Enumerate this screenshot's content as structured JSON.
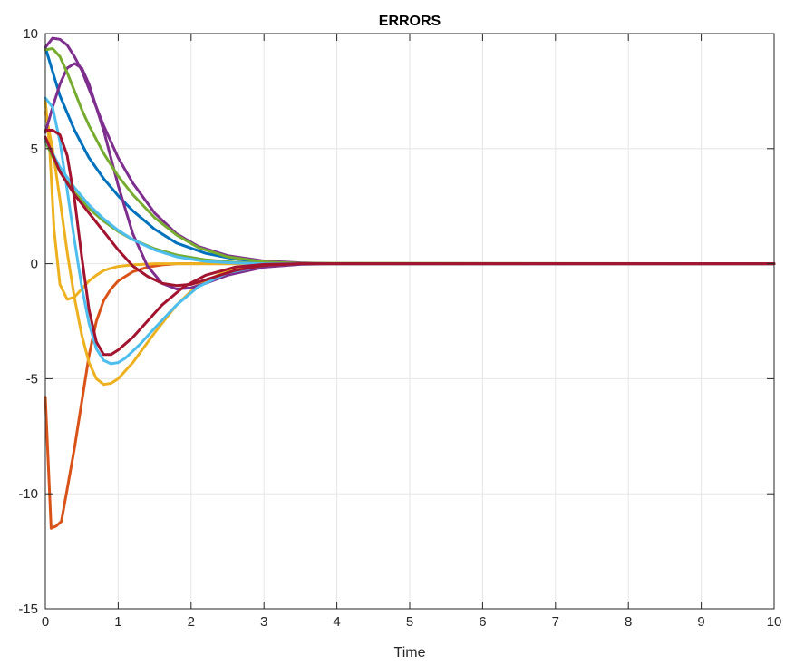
{
  "chart_data": {
    "type": "line",
    "title": "ERRORS",
    "xlabel": "Time",
    "ylabel": "",
    "xlim": [
      0,
      10
    ],
    "ylim": [
      -15,
      10
    ],
    "xticks": [
      0,
      1,
      2,
      3,
      4,
      5,
      6,
      7,
      8,
      9,
      10
    ],
    "yticks": [
      -15,
      -10,
      -5,
      0,
      5,
      10
    ],
    "grid": true,
    "series": [
      {
        "color": "#0072BD",
        "x": [
          0,
          0.2,
          0.4,
          0.6,
          0.8,
          1.0,
          1.2,
          1.5,
          1.8,
          2.2,
          2.6,
          3.0,
          3.5,
          4.0,
          10.0
        ],
        "y": [
          9.4,
          7.3,
          5.8,
          4.6,
          3.7,
          2.95,
          2.3,
          1.5,
          0.9,
          0.45,
          0.2,
          0.08,
          0.02,
          0.0,
          0.0
        ]
      },
      {
        "color": "#D95319",
        "x": [
          0,
          0.08,
          0.15,
          0.22,
          0.3,
          0.4,
          0.5,
          0.6,
          0.7,
          0.8,
          0.9,
          1.0,
          1.2,
          1.4,
          1.6,
          1.8,
          2.0,
          2.5,
          3.0,
          4.0,
          10.0
        ],
        "y": [
          -5.8,
          -11.5,
          -11.4,
          -11.2,
          -9.8,
          -8.0,
          -6.0,
          -4.0,
          -2.5,
          -1.6,
          -1.1,
          -0.75,
          -0.35,
          -0.15,
          -0.05,
          0.0,
          0.0,
          0.0,
          0.0,
          0.0,
          0.0
        ]
      },
      {
        "color": "#EDB120",
        "x": [
          0,
          0.06,
          0.12,
          0.2,
          0.3,
          0.4,
          0.5,
          0.6,
          0.7,
          0.8,
          0.9,
          1.0,
          1.2,
          1.5,
          2.0,
          3.0,
          10.0
        ],
        "y": [
          7.1,
          5.0,
          1.5,
          -0.9,
          -1.55,
          -1.45,
          -1.1,
          -0.75,
          -0.5,
          -0.3,
          -0.2,
          -0.12,
          -0.05,
          0.0,
          0.0,
          0.0,
          0.0
        ]
      },
      {
        "color": "#EDB120",
        "x": [
          0,
          0.1,
          0.2,
          0.3,
          0.4,
          0.5,
          0.6,
          0.7,
          0.8,
          0.9,
          1.0,
          1.2,
          1.5,
          1.8,
          2.1,
          2.5,
          3.0,
          3.5,
          4.0,
          10.0
        ],
        "y": [
          6.6,
          5.0,
          2.8,
          0.5,
          -1.5,
          -3.1,
          -4.3,
          -5.0,
          -5.25,
          -5.2,
          -5.0,
          -4.3,
          -3.0,
          -1.8,
          -0.9,
          -0.3,
          -0.05,
          0.0,
          0.0,
          0.0
        ]
      },
      {
        "color": "#7E2F8E",
        "x": [
          0,
          0.1,
          0.2,
          0.3,
          0.4,
          0.5,
          0.6,
          0.8,
          1.0,
          1.2,
          1.5,
          1.8,
          2.1,
          2.5,
          3.0,
          3.5,
          4.0,
          10.0
        ],
        "y": [
          9.4,
          9.8,
          9.75,
          9.5,
          9.0,
          8.4,
          7.6,
          6.0,
          4.6,
          3.5,
          2.2,
          1.3,
          0.75,
          0.35,
          0.12,
          0.04,
          0.0,
          0.0
        ]
      },
      {
        "color": "#7E2F8E",
        "x": [
          0,
          0.1,
          0.2,
          0.3,
          0.4,
          0.5,
          0.6,
          0.8,
          1.0,
          1.2,
          1.4,
          1.6,
          1.8,
          2.0,
          2.2,
          2.5,
          3.0,
          3.5,
          4.0,
          10.0
        ],
        "y": [
          5.7,
          6.8,
          7.8,
          8.5,
          8.7,
          8.5,
          7.8,
          5.8,
          3.4,
          1.3,
          -0.1,
          -0.85,
          -1.1,
          -1.05,
          -0.85,
          -0.5,
          -0.15,
          -0.03,
          0.0,
          0.0
        ]
      },
      {
        "color": "#77AC30",
        "x": [
          0,
          0.1,
          0.2,
          0.3,
          0.4,
          0.5,
          0.6,
          0.8,
          1.0,
          1.2,
          1.5,
          1.8,
          2.1,
          2.5,
          3.0,
          3.5,
          10.0
        ],
        "y": [
          9.3,
          9.35,
          9.0,
          8.3,
          7.5,
          6.7,
          6.0,
          4.8,
          3.8,
          3.0,
          2.0,
          1.25,
          0.7,
          0.3,
          0.08,
          0.02,
          0.0
        ]
      },
      {
        "color": "#77AC30",
        "x": [
          0,
          0.2,
          0.4,
          0.6,
          0.8,
          1.0,
          1.2,
          1.5,
          1.8,
          2.2,
          2.6,
          3.0,
          3.5,
          10.0
        ],
        "y": [
          5.3,
          4.0,
          3.1,
          2.4,
          1.85,
          1.4,
          1.05,
          0.65,
          0.38,
          0.17,
          0.06,
          0.02,
          0.0,
          0.0
        ]
      },
      {
        "color": "#4DBEEE",
        "x": [
          0,
          0.1,
          0.2,
          0.3,
          0.4,
          0.5,
          0.6,
          0.7,
          0.8,
          0.9,
          1.0,
          1.1,
          1.3,
          1.5,
          1.8,
          2.1,
          2.5,
          3.0,
          3.5,
          4.0,
          10.0
        ],
        "y": [
          7.2,
          6.8,
          5.3,
          3.2,
          1.0,
          -1.0,
          -2.6,
          -3.7,
          -4.2,
          -4.35,
          -4.3,
          -4.1,
          -3.5,
          -2.8,
          -1.8,
          -1.0,
          -0.4,
          -0.08,
          0.0,
          0.0,
          0.0
        ]
      },
      {
        "color": "#4DBEEE",
        "x": [
          0,
          0.2,
          0.4,
          0.6,
          0.8,
          1.0,
          1.2,
          1.5,
          1.8,
          2.2,
          2.6,
          3.0,
          3.5,
          10.0
        ],
        "y": [
          5.4,
          4.2,
          3.3,
          2.55,
          1.95,
          1.45,
          1.05,
          0.6,
          0.3,
          0.1,
          0.03,
          0.0,
          0.0,
          0.0
        ]
      },
      {
        "color": "#A2142F",
        "x": [
          0,
          0.1,
          0.2,
          0.3,
          0.4,
          0.5,
          0.6,
          0.7,
          0.8,
          0.9,
          1.0,
          1.2,
          1.4,
          1.6,
          1.9,
          2.2,
          2.6,
          3.0,
          3.5,
          4.0,
          10.0
        ],
        "y": [
          5.8,
          5.8,
          5.6,
          4.7,
          2.8,
          0.3,
          -2.0,
          -3.4,
          -3.95,
          -3.95,
          -3.75,
          -3.2,
          -2.5,
          -1.8,
          -1.0,
          -0.5,
          -0.15,
          -0.03,
          0.0,
          0.0,
          0.0
        ]
      },
      {
        "color": "#A2142F",
        "x": [
          0,
          0.2,
          0.4,
          0.6,
          0.8,
          1.0,
          1.2,
          1.4,
          1.6,
          1.8,
          2.0,
          2.3,
          2.6,
          3.0,
          3.5,
          4.0,
          10.0
        ],
        "y": [
          5.5,
          4.0,
          3.0,
          2.2,
          1.4,
          0.6,
          -0.1,
          -0.55,
          -0.85,
          -0.95,
          -0.9,
          -0.6,
          -0.3,
          -0.08,
          0.0,
          0.0,
          0.0
        ]
      }
    ]
  }
}
